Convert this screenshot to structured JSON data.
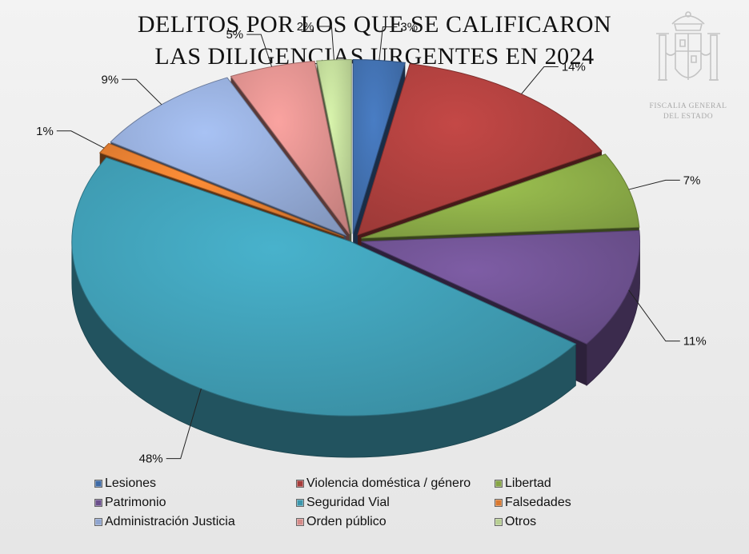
{
  "title": {
    "line1": "DELITOS POR LOS QUE SE CALIFICARON",
    "line2": "LAS DILIGENCIAS URGENTES EN 2024"
  },
  "logo": {
    "org_line1": "FISCALIA GENERAL",
    "org_line2": "DEL ESTADO",
    "icon": "royal-coat-of-arms-icon"
  },
  "chart_data": {
    "type": "pie",
    "style": "3d-exploded",
    "categories": [
      "Lesiones",
      "Violencia doméstica / género",
      "Libertad",
      "Patrimonio",
      "Seguridad Vial",
      "Falsedades",
      "Administración Justicia",
      "Orden público",
      "Otros"
    ],
    "values": [
      3,
      14,
      7,
      11,
      48,
      1,
      9,
      5,
      2
    ],
    "labels": [
      "3%",
      "14%",
      "7%",
      "11%",
      "48%",
      "1%",
      "9%",
      "5%",
      "2%"
    ],
    "colors": [
      "#3e6aa6",
      "#a63d3b",
      "#86a545",
      "#6b4f8c",
      "#3d97ad",
      "#d9782f",
      "#8ea4cf",
      "#d48a88",
      "#b7cf92"
    ],
    "legend_position": "bottom"
  }
}
